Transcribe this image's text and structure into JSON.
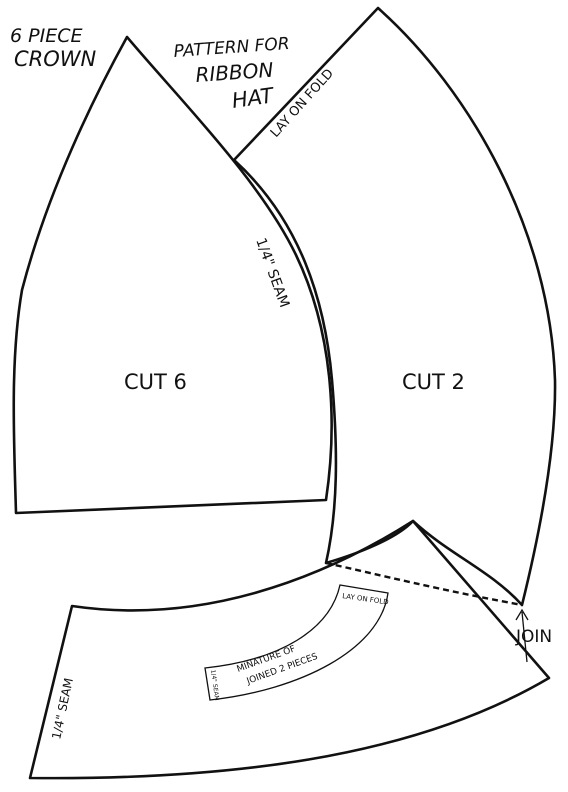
{
  "title_left": {
    "line1": "6 PIECE",
    "line2": "CROWN"
  },
  "title_right": {
    "line1": "PATTERN FOR",
    "line2": "RIBBON",
    "line3": "HAT"
  },
  "crown_piece": {
    "cut_label": "CUT 6",
    "seam_label": "1/4\" SEAM"
  },
  "side_piece": {
    "cut_label": "CUT 2",
    "fold_label": "LAY ON FOLD"
  },
  "band_piece": {
    "seam_label": "1/4\" SEAM",
    "join_label": "JOIN"
  },
  "miniature": {
    "line1": "MINATURE OF",
    "line2": "JOINED 2 PIECES",
    "fold_label": "LAY ON FOLD",
    "seam_label": "1/4\" SEAM"
  },
  "colors": {
    "ink": "#111111",
    "paper": "#ffffff"
  }
}
